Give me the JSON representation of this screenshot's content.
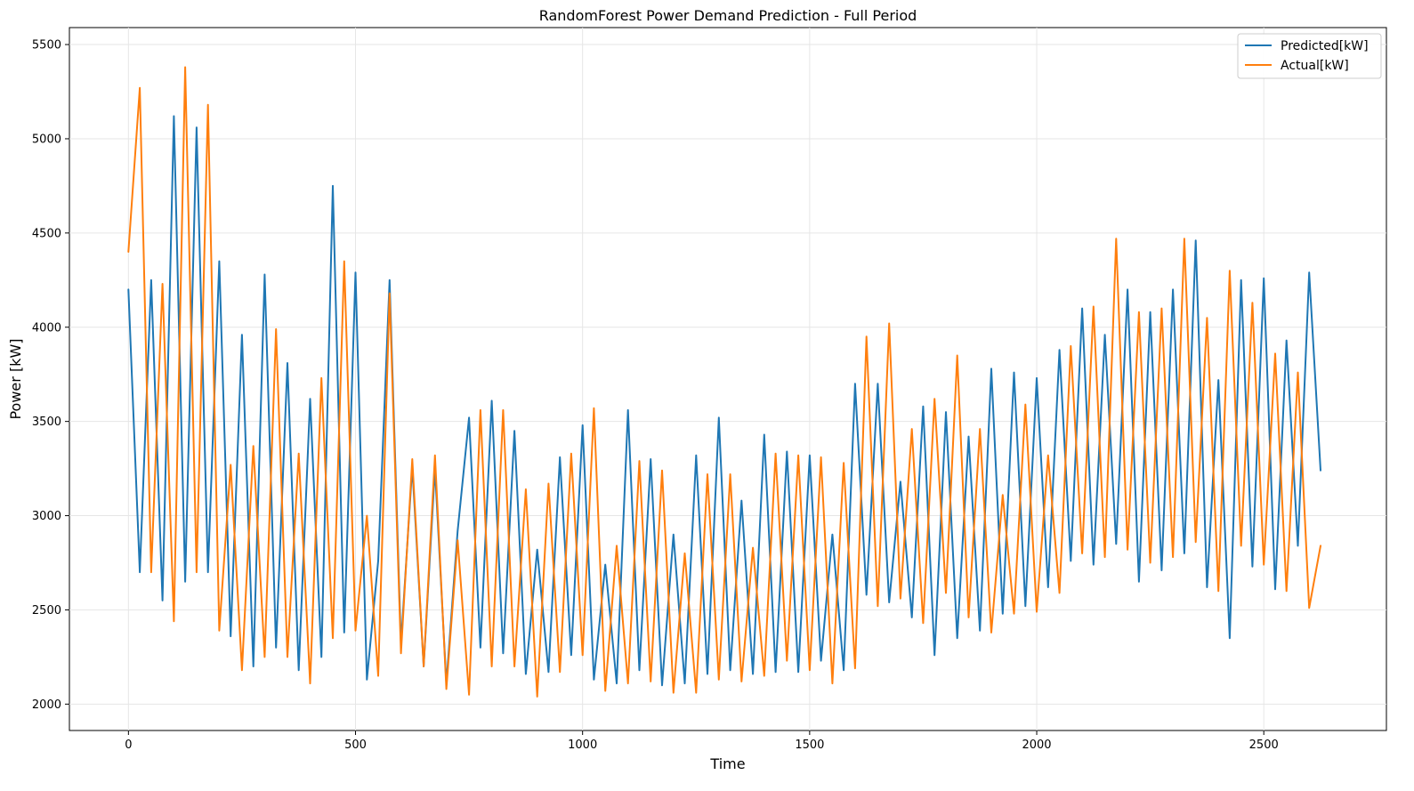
{
  "chart_data": {
    "type": "line",
    "title": "RandomForest Power Demand Prediction - Full Period",
    "xlabel": "Time",
    "ylabel": "Power [kW]",
    "xlim": [
      -130,
      2770
    ],
    "ylim": [
      1860,
      5590
    ],
    "xticks": [
      0,
      500,
      1000,
      1500,
      2000,
      2500
    ],
    "xtick_labels": [
      "0",
      "500",
      "1000",
      "1500",
      "2000",
      "2500"
    ],
    "yticks": [
      2000,
      2500,
      3000,
      3500,
      4000,
      4500,
      5000,
      5500
    ],
    "ytick_labels": [
      "2000",
      "2500",
      "3000",
      "3500",
      "4000",
      "4500",
      "5000",
      "5500"
    ],
    "grid": true,
    "legend_position": "upper right",
    "series": [
      {
        "name": "Predicted[kW]",
        "color": "#1f77b4",
        "x": [
          0,
          25,
          50,
          75,
          100,
          125,
          150,
          175,
          200,
          225,
          250,
          275,
          300,
          325,
          350,
          375,
          400,
          425,
          450,
          475,
          500,
          525,
          550,
          575,
          600,
          625,
          650,
          675,
          700,
          725,
          750,
          775,
          800,
          825,
          850,
          875,
          900,
          925,
          950,
          975,
          1000,
          1025,
          1050,
          1075,
          1100,
          1125,
          1150,
          1175,
          1200,
          1225,
          1250,
          1275,
          1300,
          1325,
          1350,
          1375,
          1400,
          1425,
          1450,
          1475,
          1500,
          1525,
          1550,
          1575,
          1600,
          1625,
          1650,
          1675,
          1700,
          1725,
          1750,
          1775,
          1800,
          1825,
          1850,
          1875,
          1900,
          1925,
          1950,
          1975,
          2000,
          2025,
          2050,
          2075,
          2100,
          2125,
          2150,
          2175,
          2200,
          2225,
          2250,
          2275,
          2300,
          2325,
          2350,
          2375,
          2400,
          2425,
          2450,
          2475,
          2500,
          2525,
          2550,
          2575,
          2600,
          2625
        ],
        "values": [
          4200,
          2700,
          4250,
          2550,
          5120,
          2650,
          5060,
          2700,
          4350,
          2360,
          3960,
          2200,
          4280,
          2300,
          3810,
          2180,
          3620,
          2250,
          4750,
          2380,
          4290,
          2130,
          2760,
          4250,
          2320,
          3260,
          2200,
          3250,
          2110,
          2920,
          3520,
          2300,
          3610,
          2270,
          3450,
          2160,
          2820,
          2170,
          3310,
          2260,
          3480,
          2130,
          2740,
          2110,
          3560,
          2180,
          3300,
          2100,
          2900,
          2110,
          3320,
          2160,
          3520,
          2180,
          3080,
          2160,
          3430,
          2170,
          3340,
          2170,
          3320,
          2230,
          2900,
          2180,
          3700,
          2580,
          3700,
          2540,
          3180,
          2460,
          3580,
          2260,
          3550,
          2350,
          3420,
          2390,
          3780,
          2480,
          3760,
          2520,
          3730,
          2620,
          3880,
          2760,
          4100,
          2740,
          3960,
          2850,
          4200,
          2650,
          4080,
          2710,
          4200,
          2800,
          4460,
          2620,
          3720,
          2350,
          4250,
          2730,
          4260,
          2610,
          3930,
          2840,
          4290,
          3240
        ]
      },
      {
        "name": "Actual[kW]",
        "color": "#ff7f0e",
        "x": [
          0,
          25,
          50,
          75,
          100,
          125,
          150,
          175,
          200,
          225,
          250,
          275,
          300,
          325,
          350,
          375,
          400,
          425,
          450,
          475,
          500,
          525,
          550,
          575,
          600,
          625,
          650,
          675,
          700,
          725,
          750,
          775,
          800,
          825,
          850,
          875,
          900,
          925,
          950,
          975,
          1000,
          1025,
          1050,
          1075,
          1100,
          1125,
          1150,
          1175,
          1200,
          1225,
          1250,
          1275,
          1300,
          1325,
          1350,
          1375,
          1400,
          1425,
          1450,
          1475,
          1500,
          1525,
          1550,
          1575,
          1600,
          1625,
          1650,
          1675,
          1700,
          1725,
          1750,
          1775,
          1800,
          1825,
          1850,
          1875,
          1900,
          1925,
          1950,
          1975,
          2000,
          2025,
          2050,
          2075,
          2100,
          2125,
          2150,
          2175,
          2200,
          2225,
          2250,
          2275,
          2300,
          2325,
          2350,
          2375,
          2400,
          2425,
          2450,
          2475,
          2500,
          2525,
          2550,
          2575,
          2600,
          2625
        ],
        "values": [
          4400,
          5270,
          2700,
          4230,
          2440,
          5380,
          2700,
          5180,
          2390,
          3270,
          2180,
          3370,
          2250,
          3990,
          2250,
          3330,
          2110,
          3730,
          2350,
          4350,
          2390,
          3000,
          2150,
          4180,
          2270,
          3300,
          2200,
          3320,
          2080,
          2870,
          2050,
          3560,
          2200,
          3560,
          2200,
          3140,
          2040,
          3170,
          2170,
          3330,
          2260,
          3570,
          2070,
          2840,
          2110,
          3290,
          2120,
          3240,
          2060,
          2800,
          2060,
          3220,
          2130,
          3220,
          2120,
          2830,
          2150,
          3330,
          2230,
          3320,
          2180,
          3310,
          2110,
          3280,
          2190,
          3950,
          2520,
          4020,
          2560,
          3460,
          2430,
          3620,
          2590,
          3850,
          2460,
          3460,
          2380,
          3110,
          2480,
          3590,
          2490,
          3320,
          2590,
          3900,
          2800,
          4110,
          2780,
          4470,
          2820,
          4080,
          2750,
          4100,
          2780,
          4470,
          2860,
          4050,
          2600,
          4300,
          2840,
          4130,
          2740,
          3860,
          2600,
          3760,
          2510,
          2840
        ]
      }
    ]
  }
}
